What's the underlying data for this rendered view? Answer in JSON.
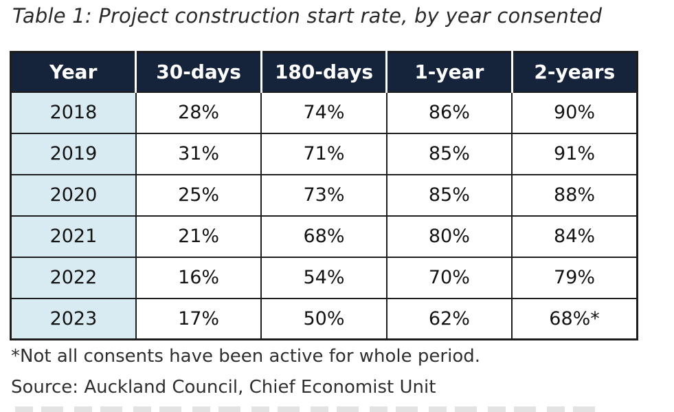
{
  "title": "Table 1: Project construction start rate, by year consented",
  "table": {
    "columns": [
      "Year",
      "30-days",
      "180-days",
      "1-year",
      "2-years"
    ],
    "rows": [
      {
        "year": "2018",
        "values": [
          "28%",
          "74%",
          "86%",
          "90%"
        ]
      },
      {
        "year": "2019",
        "values": [
          "31%",
          "71%",
          "85%",
          "91%"
        ]
      },
      {
        "year": "2020",
        "values": [
          "25%",
          "73%",
          "85%",
          "88%"
        ]
      },
      {
        "year": "2021",
        "values": [
          "21%",
          "68%",
          "80%",
          "84%"
        ]
      },
      {
        "year": "2022",
        "values": [
          "16%",
          "54%",
          "70%",
          "79%"
        ]
      },
      {
        "year": "2023",
        "values": [
          "17%",
          "50%",
          "62%",
          "68%*"
        ]
      }
    ]
  },
  "footnotes": {
    "note": "*Not all consents have been active for whole period.",
    "source": "Source: Auckland Council, Chief Economist Unit"
  },
  "colors": {
    "header-bg": "#15243a",
    "year-bg": "#d8ebf3",
    "border": "#1d1d1d"
  },
  "chart_data": {
    "type": "table",
    "title": "Table 1: Project construction start rate, by year consented",
    "categories": [
      "2018",
      "2019",
      "2020",
      "2021",
      "2022",
      "2023"
    ],
    "series": [
      {
        "name": "30-days",
        "values": [
          28,
          31,
          25,
          21,
          16,
          17
        ]
      },
      {
        "name": "180-days",
        "values": [
          74,
          71,
          73,
          68,
          54,
          50
        ]
      },
      {
        "name": "1-year",
        "values": [
          86,
          85,
          85,
          80,
          70,
          62
        ]
      },
      {
        "name": "2-years",
        "values": [
          90,
          91,
          88,
          84,
          79,
          68
        ]
      }
    ]
  }
}
